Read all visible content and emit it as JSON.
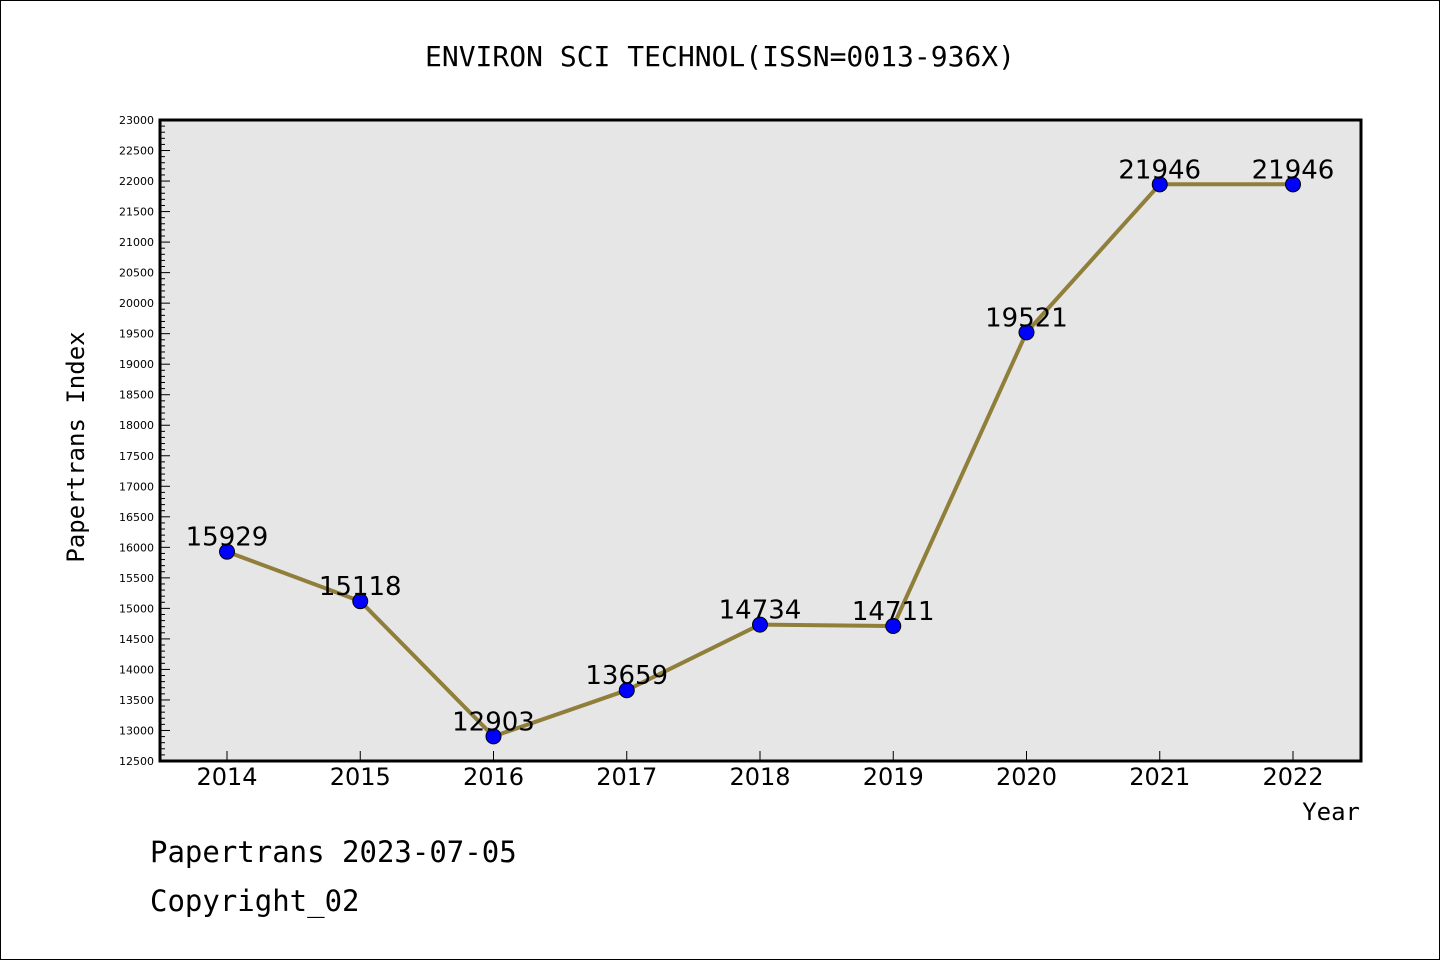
{
  "chart_data": {
    "type": "line",
    "title": "ENVIRON SCI TECHNOL(ISSN=0013-936X)",
    "xlabel": "Year",
    "ylabel": "Papertrans Index",
    "categories": [
      "2014",
      "2015",
      "2016",
      "2017",
      "2018",
      "2019",
      "2020",
      "2021",
      "2022"
    ],
    "series": [
      {
        "values": [
          15929,
          15118,
          12903,
          13659,
          14734,
          14711,
          19521,
          21946,
          21946
        ]
      }
    ],
    "data_labels": [
      "15929",
      "15118",
      "12903",
      "13659",
      "14734",
      "14711",
      "19521",
      "21946",
      "21946"
    ],
    "ylim": [
      12500,
      23000
    ],
    "yticks": [
      12500,
      13000,
      13500,
      14000,
      14500,
      15000,
      15500,
      16000,
      16500,
      17000,
      17500,
      18000,
      18500,
      19000,
      19500,
      20000,
      20500,
      21000,
      21500,
      22000,
      22500,
      23000
    ],
    "grid": false,
    "legend": "none",
    "colors": {
      "line": "#8f7f3a",
      "marker": "#0000ff",
      "plot_bg": "#e6e6e6",
      "frame": "#000000"
    }
  },
  "footer": {
    "line1": "Papertrans 2023-07-05",
    "line2": "Copyright_02"
  }
}
